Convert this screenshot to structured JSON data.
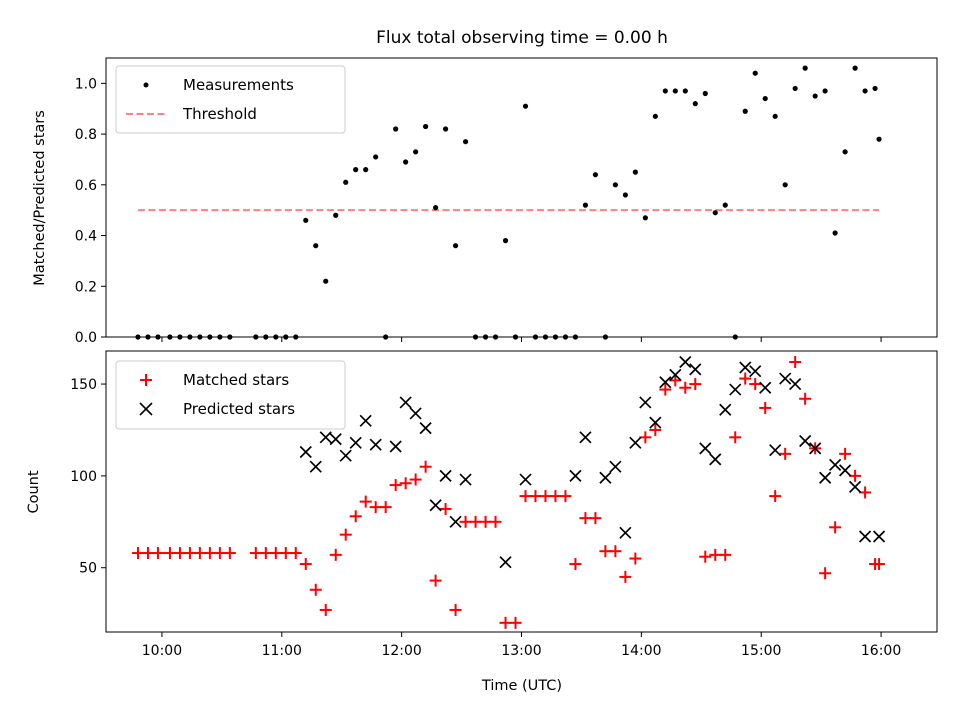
{
  "chart_data": [
    {
      "type": "scatter",
      "title": "Flux total observing time = 0.00 h",
      "xlabel": "",
      "ylabel": "Matched/Predicted stars",
      "ylim": [
        0,
        1.1
      ],
      "yticks": [
        "0.0",
        "0.2",
        "0.4",
        "0.6",
        "0.8",
        "1.0"
      ],
      "ytick_values": [
        0,
        0.2,
        0.4,
        0.6,
        0.8,
        1.0
      ],
      "legend": {
        "placement": "top-left",
        "entries": [
          "Measurements",
          "Threshold"
        ]
      },
      "threshold": {
        "label": "Threshold",
        "value": 0.5,
        "x_range": [
          "09:48",
          "15:59"
        ],
        "color": "#ff8080"
      },
      "series": [
        {
          "name": "Measurements",
          "color": "#000000",
          "x": [
            "09:48",
            "09:53",
            "09:58",
            "10:04",
            "10:09",
            "10:14",
            "10:19",
            "10:24",
            "10:29",
            "10:34",
            "10:47",
            "10:52",
            "10:57",
            "11:02",
            "11:07",
            "11:12",
            "11:17",
            "11:22",
            "11:27",
            "11:32",
            "11:37",
            "11:42",
            "11:47",
            "11:52",
            "11:57",
            "12:02",
            "12:07",
            "12:12",
            "12:17",
            "12:22",
            "12:27",
            "12:32",
            "12:37",
            "12:42",
            "12:47",
            "12:52",
            "12:57",
            "13:02",
            "13:07",
            "13:12",
            "13:17",
            "13:22",
            "13:27",
            "13:32",
            "13:37",
            "13:42",
            "13:47",
            "13:52",
            "13:57",
            "14:02",
            "14:07",
            "14:12",
            "14:17",
            "14:22",
            "14:27",
            "14:32",
            "14:37",
            "14:42",
            "14:47",
            "14:52",
            "14:57",
            "15:02",
            "15:07",
            "15:12",
            "15:17",
            "15:22",
            "15:27",
            "15:32",
            "15:37",
            "15:42",
            "15:47",
            "15:52",
            "15:57",
            "15:59"
          ],
          "values": [
            0,
            0,
            0,
            0,
            0,
            0,
            0,
            0,
            0,
            0,
            0,
            0,
            0,
            0,
            0,
            0.46,
            0.36,
            0.22,
            0.48,
            0.61,
            0.66,
            0.66,
            0.71,
            0,
            0.82,
            0.69,
            0.73,
            0.83,
            0.51,
            0.82,
            0.36,
            0.77,
            0,
            0,
            0,
            0.38,
            0,
            0.91,
            0,
            0,
            0,
            0,
            0,
            0.52,
            0.64,
            0,
            0.6,
            0.56,
            0.65,
            0.47,
            0.87,
            0.97,
            0.97,
            0.97,
            0.92,
            0.96,
            0.49,
            0.52,
            0,
            0.89,
            1.04,
            0.94,
            0.87,
            0.6,
            0.98,
            1.06,
            0.95,
            0.97,
            0.41,
            0.73,
            1.06,
            0.97,
            0.98,
            0.78
          ]
        }
      ]
    },
    {
      "type": "scatter",
      "title": "",
      "xlabel": "Time (UTC)",
      "ylabel": "Count",
      "xlim": [
        "09:32",
        "16:28"
      ],
      "xticks": [
        "10:00",
        "11:00",
        "12:00",
        "13:00",
        "14:00",
        "15:00",
        "16:00"
      ],
      "ylim": [
        15,
        168
      ],
      "yticks": [
        "50",
        "100",
        "150"
      ],
      "ytick_values": [
        50,
        100,
        150
      ],
      "legend": {
        "placement": "top-left",
        "entries": [
          "Matched stars",
          "Predicted stars"
        ]
      },
      "series": [
        {
          "name": "Matched stars",
          "marker": "+",
          "color": "#ff0000",
          "x": [
            "09:48",
            "09:53",
            "09:58",
            "10:04",
            "10:09",
            "10:14",
            "10:19",
            "10:24",
            "10:29",
            "10:34",
            "10:47",
            "10:52",
            "10:57",
            "11:02",
            "11:07",
            "11:12",
            "11:17",
            "11:22",
            "11:27",
            "11:32",
            "11:37",
            "11:42",
            "11:47",
            "11:52",
            "11:57",
            "12:02",
            "12:07",
            "12:12",
            "12:17",
            "12:22",
            "12:27",
            "12:32",
            "12:37",
            "12:42",
            "12:47",
            "12:52",
            "12:57",
            "13:02",
            "13:07",
            "13:12",
            "13:17",
            "13:22",
            "13:27",
            "13:32",
            "13:37",
            "13:42",
            "13:47",
            "13:52",
            "13:57",
            "14:02",
            "14:07",
            "14:12",
            "14:17",
            "14:22",
            "14:27",
            "14:32",
            "14:37",
            "14:42",
            "14:47",
            "14:52",
            "14:57",
            "15:02",
            "15:07",
            "15:12",
            "15:17",
            "15:22",
            "15:27",
            "15:32",
            "15:37",
            "15:42",
            "15:47",
            "15:52",
            "15:57",
            "15:59"
          ],
          "values": [
            58,
            58,
            58,
            58,
            58,
            58,
            58,
            58,
            58,
            58,
            58,
            58,
            58,
            58,
            58,
            52,
            38,
            27,
            57,
            68,
            78,
            86,
            83,
            83,
            95,
            96,
            98,
            105,
            43,
            82,
            27,
            75,
            75,
            75,
            75,
            20,
            20,
            89,
            89,
            89,
            89,
            89,
            52,
            77,
            77,
            59,
            59,
            45,
            55,
            121,
            125,
            147,
            152,
            148,
            150,
            56,
            57,
            57,
            121,
            153,
            150,
            137,
            89,
            112,
            162,
            142,
            115,
            47,
            72,
            112,
            100,
            91,
            52,
            52
          ]
        },
        {
          "name": "Predicted stars",
          "marker": "x",
          "color": "#000000",
          "x": [
            "11:12",
            "11:17",
            "11:22",
            "11:27",
            "11:32",
            "11:37",
            "11:42",
            "11:47",
            "11:57",
            "12:02",
            "12:07",
            "12:12",
            "12:17",
            "12:22",
            "12:27",
            "12:32",
            "12:52",
            "13:02",
            "13:27",
            "13:32",
            "13:42",
            "13:47",
            "13:52",
            "13:57",
            "14:02",
            "14:07",
            "14:12",
            "14:17",
            "14:22",
            "14:27",
            "14:32",
            "14:37",
            "14:42",
            "14:47",
            "14:52",
            "14:57",
            "15:02",
            "15:07",
            "15:12",
            "15:17",
            "15:22",
            "15:27",
            "15:32",
            "15:37",
            "15:42",
            "15:47",
            "15:52",
            "15:59"
          ],
          "values": [
            113,
            105,
            121,
            120,
            111,
            118,
            130,
            117,
            116,
            140,
            134,
            126,
            84,
            100,
            75,
            98,
            53,
            98,
            100,
            121,
            99,
            105,
            69,
            118,
            140,
            129,
            151,
            155,
            162,
            158,
            115,
            109,
            136,
            147,
            159,
            157,
            148,
            114,
            153,
            150,
            119,
            115,
            99,
            106,
            103,
            94,
            67,
            67
          ]
        }
      ]
    }
  ]
}
